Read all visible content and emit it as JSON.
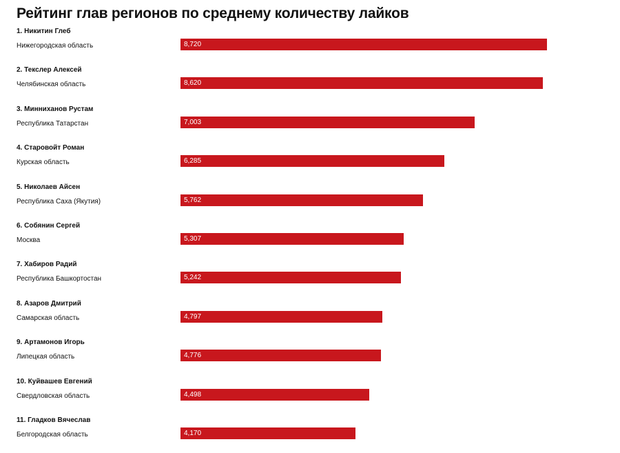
{
  "chart_data": {
    "type": "bar",
    "orientation": "horizontal",
    "title": "Рейтинг глав регионов по среднему количеству лайков",
    "categories": [
      "1. Никитин Глеб",
      "2. Текслер Алексей",
      "3. Минниханов Рустам",
      "4. Старовойт Роман",
      "5. Николаев Айсен",
      "6. Собянин Сергей",
      "7. Хабиров Радий",
      "8. Азаров Дмитрий",
      "9. Артамонов Игорь",
      "10. Куйвашев Евгений",
      "11. Гладков Вячеслав"
    ],
    "regions": [
      "Нижегородская область",
      "Челябинская область",
      "Республика Татарстан",
      "Курская область",
      "Республика Саха (Якутия)",
      "Москва",
      "Республика Башкортостан",
      "Самарская область",
      "Липецкая область",
      "Свердловская область",
      "Белгородская область"
    ],
    "values": [
      8720,
      8620,
      7003,
      6285,
      5762,
      5307,
      5242,
      4797,
      4776,
      4498,
      4170
    ],
    "value_labels": [
      "8,720",
      "8,620",
      "7,003",
      "6,285",
      "5,762",
      "5,307",
      "5,242",
      "4,797",
      "4,776",
      "4,498",
      "4,170"
    ],
    "xlim": [
      0,
      8720
    ],
    "bar_color": "#c8171d",
    "label_color": "#ffffff",
    "grid": false,
    "legend": "none"
  }
}
